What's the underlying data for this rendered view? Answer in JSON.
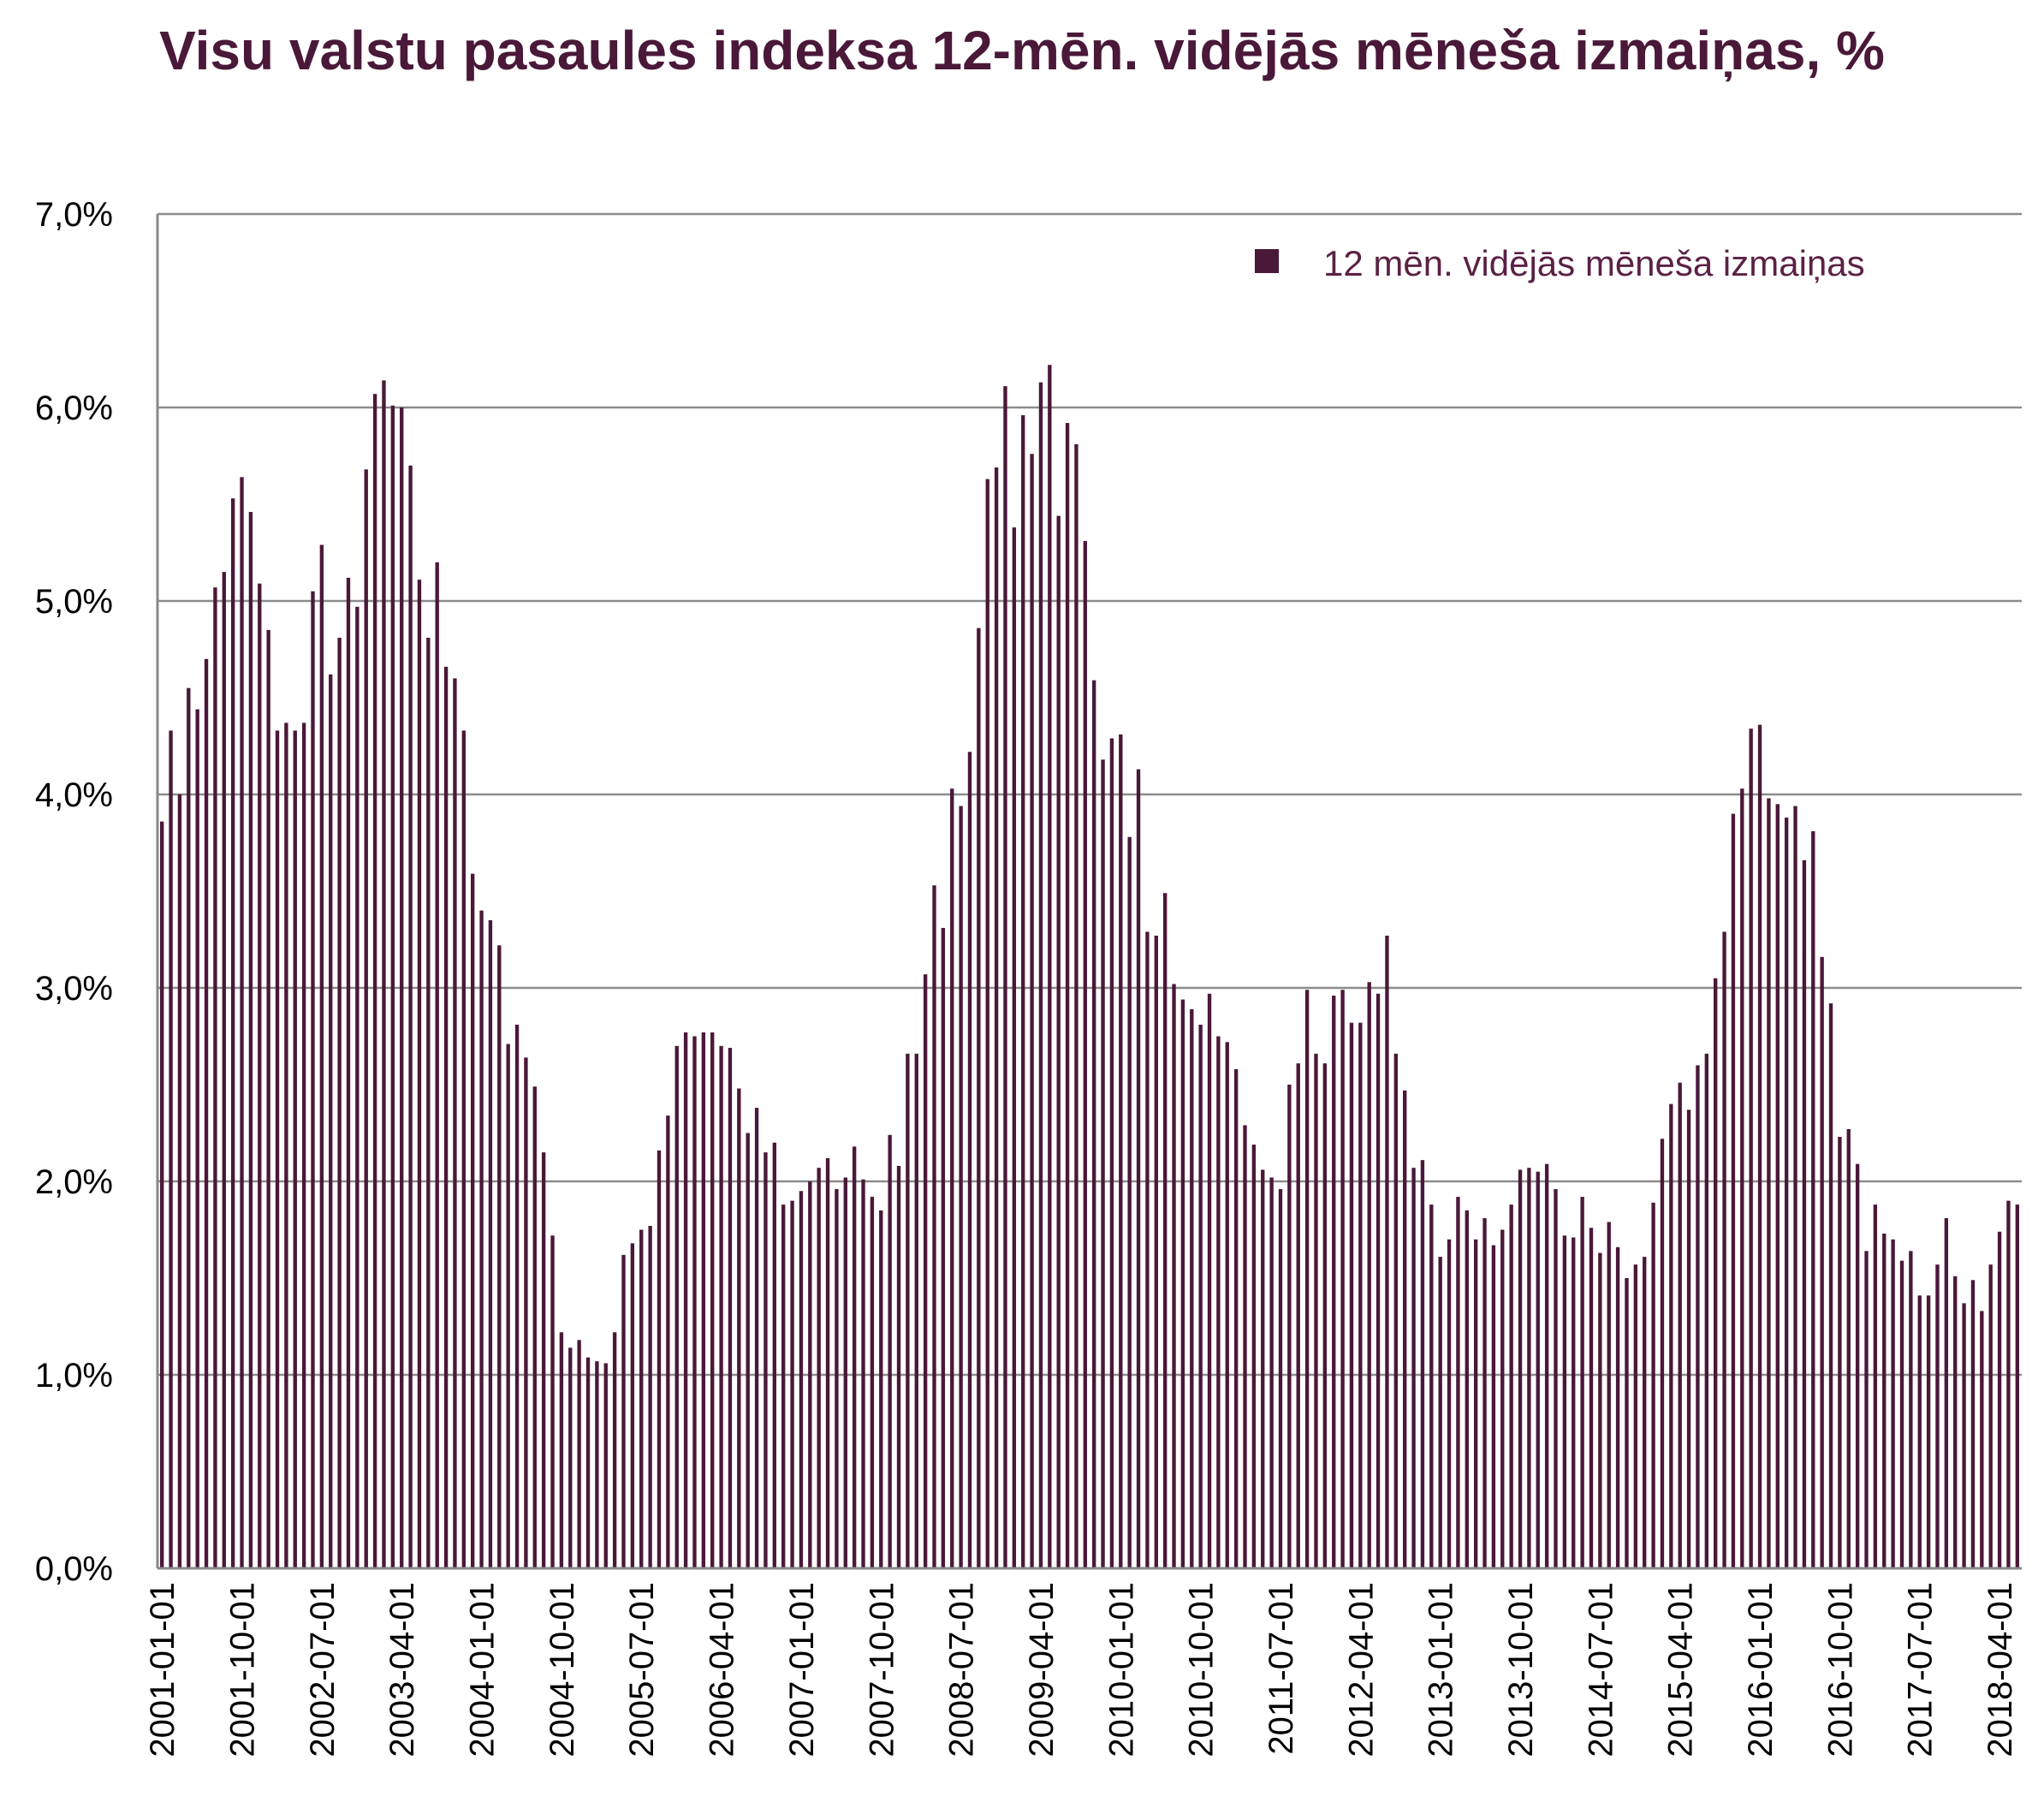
{
  "chart_data": {
    "type": "bar",
    "title": "Visu valstu pasaules indeksa 12-mēn. vidējās mēneša izmaiņas, %",
    "xlabel": "",
    "ylabel": "",
    "ylim": [
      0,
      7
    ],
    "y_ticks": [
      "0,0%",
      "1,0%",
      "2,0%",
      "3,0%",
      "4,0%",
      "5,0%",
      "6,0%",
      "7,0%"
    ],
    "y_tick_values": [
      0,
      1,
      2,
      3,
      4,
      5,
      6,
      7
    ],
    "grid": true,
    "legend_position": "top-right",
    "bar_color": "#4a1838",
    "x_start": "2001-01-01",
    "x_end": "2018-06-01",
    "x_tick_labels": [
      "2001-01-01",
      "2001-10-01",
      "2002-07-01",
      "2003-04-01",
      "2004-01-01",
      "2004-10-01",
      "2005-07-01",
      "2006-04-01",
      "2007-01-01",
      "2007-10-01",
      "2008-07-01",
      "2009-04-01",
      "2010-01-01",
      "2010-10-01",
      "2011-07-01",
      "2012-04-01",
      "2013-01-01",
      "2013-10-01",
      "2014-07-01",
      "2015-04-01",
      "2016-01-01",
      "2016-10-01",
      "2017-07-01",
      "2018-04-01"
    ],
    "series": [
      {
        "name": "12 mēn. vidējās mēneša izmaiņas",
        "values": [
          3.86,
          4.33,
          4.0,
          4.55,
          4.44,
          4.7,
          5.07,
          5.15,
          5.53,
          5.64,
          5.46,
          5.09,
          4.85,
          4.33,
          4.37,
          4.33,
          4.37,
          5.05,
          5.29,
          4.62,
          4.81,
          5.12,
          4.97,
          5.68,
          6.07,
          6.14,
          6.01,
          6.0,
          5.7,
          5.11,
          4.81,
          5.2,
          4.66,
          4.6,
          4.33,
          3.59,
          3.4,
          3.35,
          3.22,
          2.71,
          2.81,
          2.64,
          2.49,
          2.15,
          1.72,
          1.22,
          1.14,
          1.18,
          1.09,
          1.07,
          1.06,
          1.22,
          1.62,
          1.68,
          1.75,
          1.77,
          2.16,
          2.34,
          2.7,
          2.77,
          2.75,
          2.77,
          2.77,
          2.7,
          2.69,
          2.48,
          2.25,
          2.38,
          2.15,
          2.2,
          1.88,
          1.9,
          1.95,
          2.0,
          2.07,
          2.12,
          1.96,
          2.02,
          2.18,
          2.01,
          1.92,
          1.85,
          2.24,
          2.08,
          2.66,
          2.66,
          3.07,
          3.53,
          3.31,
          4.03,
          3.94,
          4.22,
          4.86,
          5.63,
          5.69,
          6.11,
          5.38,
          5.96,
          5.76,
          6.13,
          6.22,
          5.44,
          5.92,
          5.81,
          5.31,
          4.59,
          4.18,
          4.29,
          4.31,
          3.78,
          4.13,
          3.29,
          3.27,
          3.49,
          3.02,
          2.94,
          2.89,
          2.81,
          2.97,
          2.75,
          2.72,
          2.58,
          2.29,
          2.19,
          2.06,
          2.02,
          1.96,
          2.5,
          2.61,
          2.99,
          2.66,
          2.61,
          2.96,
          2.99,
          2.82,
          2.82,
          3.03,
          2.97,
          3.27,
          2.66,
          2.47,
          2.07,
          2.11,
          1.88,
          1.61,
          1.7,
          1.92,
          1.85,
          1.7,
          1.81,
          1.67,
          1.75,
          1.88,
          2.06,
          2.07,
          2.05,
          2.09,
          1.96,
          1.72,
          1.71,
          1.92,
          1.76,
          1.63,
          1.79,
          1.66,
          1.5,
          1.57,
          1.61,
          1.89,
          2.22,
          2.4,
          2.51,
          2.37,
          2.6,
          2.66,
          3.05,
          3.29,
          3.9,
          4.03,
          4.34,
          4.36,
          3.98,
          3.95,
          3.88,
          3.94,
          3.66,
          3.81,
          3.16,
          2.92,
          2.23,
          2.27,
          2.09,
          1.64,
          1.88,
          1.73,
          1.7,
          1.59,
          1.64,
          1.41,
          1.41,
          1.57,
          1.81,
          1.51,
          1.37,
          1.49,
          1.33,
          1.57,
          1.74,
          1.9,
          1.88
        ]
      }
    ]
  }
}
